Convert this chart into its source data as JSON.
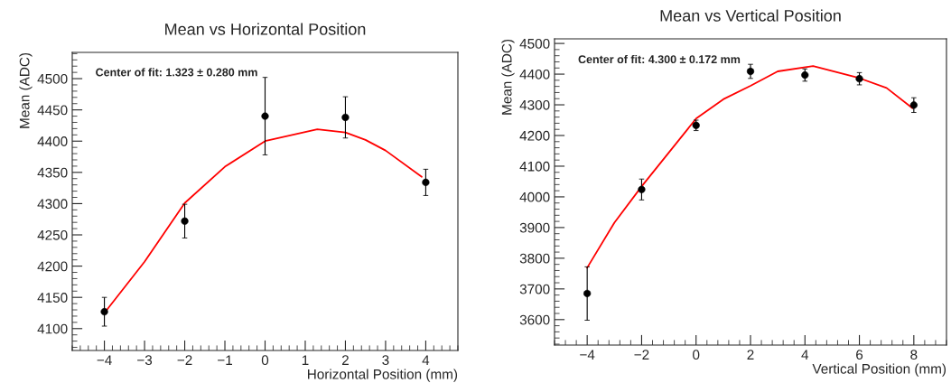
{
  "chart_data": [
    {
      "type": "scatter",
      "title": "Mean vs Horizontal Position",
      "xlabel": "Horizontal Position (mm)",
      "ylabel": "Mean (ADC)",
      "annotations": [
        "Center of fit: 1.323 ± 0.280 mm"
      ],
      "x": [
        -4,
        -2,
        0,
        2,
        4
      ],
      "series": [
        {
          "color": "#000000",
          "marker": "circle",
          "values": [
            4127,
            4272,
            4440,
            4438,
            4334
          ],
          "errors": [
            23,
            27,
            62,
            33,
            21
          ]
        },
        {
          "type": "line",
          "color": "#ff0000",
          "marker": "none",
          "x": [
            -4,
            -3,
            -2,
            -1,
            0,
            1.3,
            2,
            2.5,
            3,
            3.9
          ],
          "values": [
            4125,
            4207,
            4301,
            4359,
            4400,
            4419,
            4414,
            4402,
            4385,
            4343
          ]
        }
      ],
      "xlim": [
        -4.8,
        4.8
      ],
      "xticks": [
        {
          "value": -4,
          "label": "−4"
        },
        {
          "value": -3,
          "label": "−3"
        },
        {
          "value": -2,
          "label": "−2"
        },
        {
          "value": -1,
          "label": "−1"
        },
        0,
        1,
        2,
        3,
        4
      ],
      "ylim": [
        4065,
        4542
      ],
      "yticks": [
        4100,
        4150,
        4200,
        4250,
        4300,
        4350,
        4400,
        4450,
        4500
      ],
      "grid": false,
      "legend": false
    },
    {
      "type": "scatter",
      "title": "Mean vs Vertical Position",
      "xlabel": "Vertical Position (mm)",
      "ylabel": "Mean (ADC)",
      "annotations": [
        "Center of fit: 4.300 ± 0.172 mm"
      ],
      "x": [
        -4,
        -2,
        0,
        2,
        4,
        6,
        8
      ],
      "series": [
        {
          "color": "#000000",
          "marker": "circle",
          "values": [
            3685,
            4024,
            4233,
            4409,
            4397,
            4385,
            4299
          ],
          "errors": [
            87,
            34,
            17,
            23,
            20,
            20,
            24
          ]
        },
        {
          "type": "line",
          "color": "#ff0000",
          "marker": "none",
          "x": [
            -4,
            -3,
            -2,
            0,
            1,
            2,
            3,
            4.3,
            6,
            7,
            7.95
          ],
          "values": [
            3769,
            3916,
            4034,
            4255,
            4318,
            4362,
            4409,
            4426,
            4387,
            4355,
            4289
          ]
        }
      ],
      "xlim": [
        -5.2,
        9.2
      ],
      "xticks": [
        {
          "value": -4,
          "label": "−4"
        },
        {
          "value": -2,
          "label": "−2"
        },
        0,
        2,
        4,
        6,
        8
      ],
      "ylim": [
        3517,
        4515
      ],
      "yticks": [
        3600,
        3700,
        3800,
        3900,
        4000,
        4100,
        4200,
        4300,
        4400,
        4500
      ],
      "grid": false,
      "legend": false
    }
  ]
}
